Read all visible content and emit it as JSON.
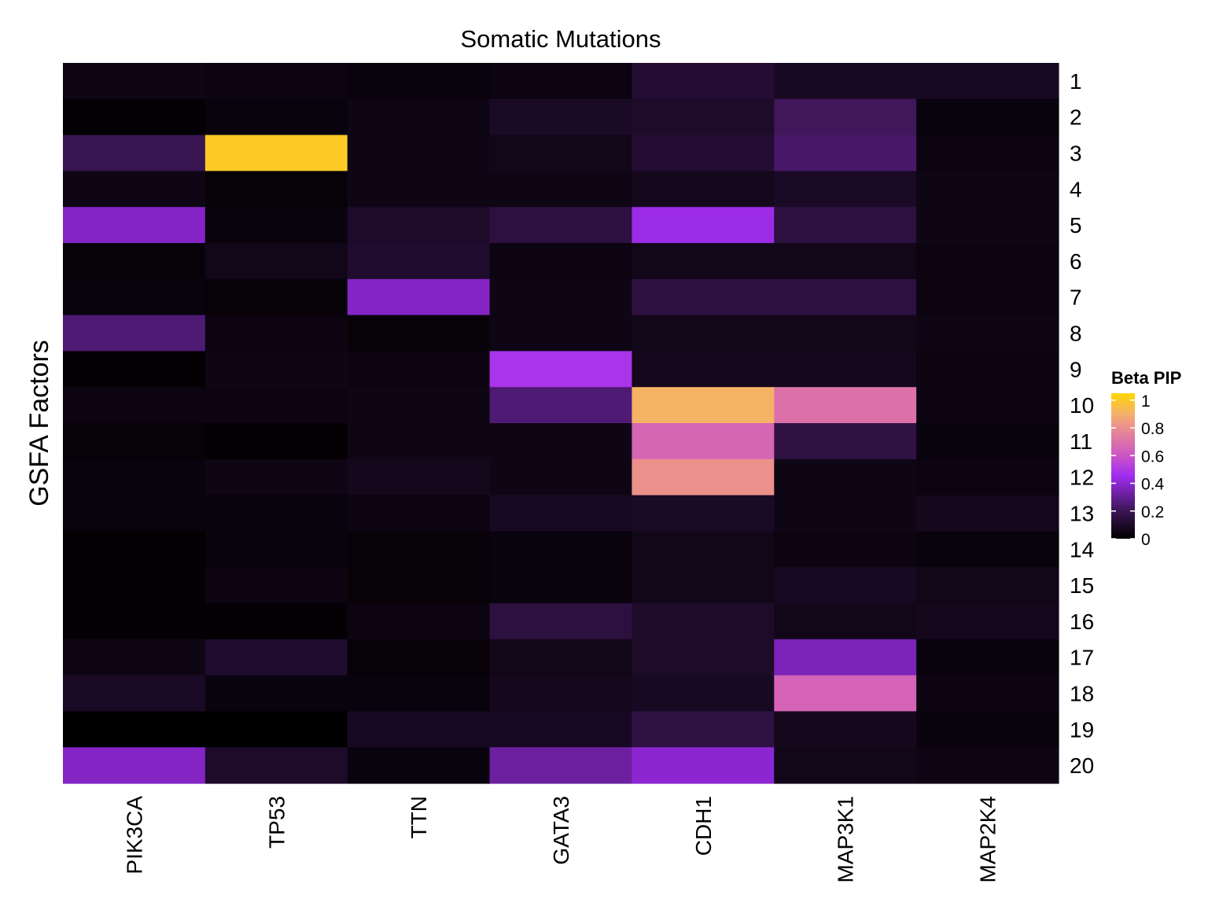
{
  "chart_data": {
    "type": "heatmap",
    "title": "Somatic Mutations",
    "xlabel": "",
    "ylabel": "GSFA Factors",
    "x_categories": [
      "PIK3CA",
      "TP53",
      "TTN",
      "GATA3",
      "CDH1",
      "MAP3K1",
      "MAP2K4"
    ],
    "y_categories": [
      "1",
      "2",
      "3",
      "4",
      "5",
      "6",
      "7",
      "8",
      "9",
      "10",
      "11",
      "12",
      "13",
      "14",
      "15",
      "16",
      "17",
      "18",
      "19",
      "20"
    ],
    "values": [
      [
        0.05,
        0.04,
        0.03,
        0.04,
        0.12,
        0.08,
        0.08
      ],
      [
        0.01,
        0.03,
        0.05,
        0.09,
        0.1,
        0.21,
        0.03
      ],
      [
        0.19,
        1.0,
        0.05,
        0.06,
        0.12,
        0.23,
        0.04
      ],
      [
        0.05,
        0.02,
        0.05,
        0.05,
        0.07,
        0.09,
        0.05
      ],
      [
        0.38,
        0.03,
        0.1,
        0.15,
        0.44,
        0.15,
        0.05
      ],
      [
        0.02,
        0.06,
        0.11,
        0.04,
        0.06,
        0.06,
        0.04
      ],
      [
        0.03,
        0.02,
        0.38,
        0.05,
        0.15,
        0.15,
        0.04
      ],
      [
        0.25,
        0.04,
        0.02,
        0.05,
        0.06,
        0.06,
        0.05
      ],
      [
        0.01,
        0.05,
        0.04,
        0.48,
        0.07,
        0.07,
        0.04
      ],
      [
        0.04,
        0.04,
        0.05,
        0.25,
        0.91,
        0.7,
        0.04
      ],
      [
        0.02,
        0.01,
        0.05,
        0.05,
        0.66,
        0.16,
        0.03
      ],
      [
        0.03,
        0.05,
        0.07,
        0.05,
        0.81,
        0.05,
        0.04
      ],
      [
        0.03,
        0.03,
        0.04,
        0.08,
        0.09,
        0.05,
        0.07
      ],
      [
        0.01,
        0.03,
        0.02,
        0.03,
        0.06,
        0.04,
        0.03
      ],
      [
        0.01,
        0.04,
        0.02,
        0.03,
        0.06,
        0.08,
        0.06
      ],
      [
        0.01,
        0.01,
        0.04,
        0.15,
        0.1,
        0.06,
        0.07
      ],
      [
        0.05,
        0.11,
        0.02,
        0.06,
        0.1,
        0.36,
        0.03
      ],
      [
        0.09,
        0.03,
        0.03,
        0.07,
        0.08,
        0.65,
        0.04
      ],
      [
        0.0,
        0.0,
        0.08,
        0.08,
        0.16,
        0.07,
        0.03
      ],
      [
        0.38,
        0.1,
        0.03,
        0.32,
        0.4,
        0.06,
        0.05
      ]
    ],
    "zlim": [
      0,
      1.05
    ],
    "legend": {
      "title": "Beta PIP",
      "position": "right",
      "ticks": [
        0,
        0.2,
        0.4,
        0.6,
        0.8,
        1
      ],
      "tick_labels": [
        "0",
        "0.2",
        "0.4",
        "0.6",
        "0.8",
        "1"
      ]
    },
    "colorscale": [
      {
        "v": 0.0,
        "color": "#000000"
      },
      {
        "v": 0.2,
        "color": "#3b1654"
      },
      {
        "v": 0.4,
        "color": "#8c26d2"
      },
      {
        "v": 0.46,
        "color": "#a32ef0"
      },
      {
        "v": 0.6,
        "color": "#cc55c4"
      },
      {
        "v": 0.8,
        "color": "#eb8e90"
      },
      {
        "v": 0.9,
        "color": "#f4b06c"
      },
      {
        "v": 1.05,
        "color": "#ffd700"
      }
    ],
    "grid": false
  }
}
